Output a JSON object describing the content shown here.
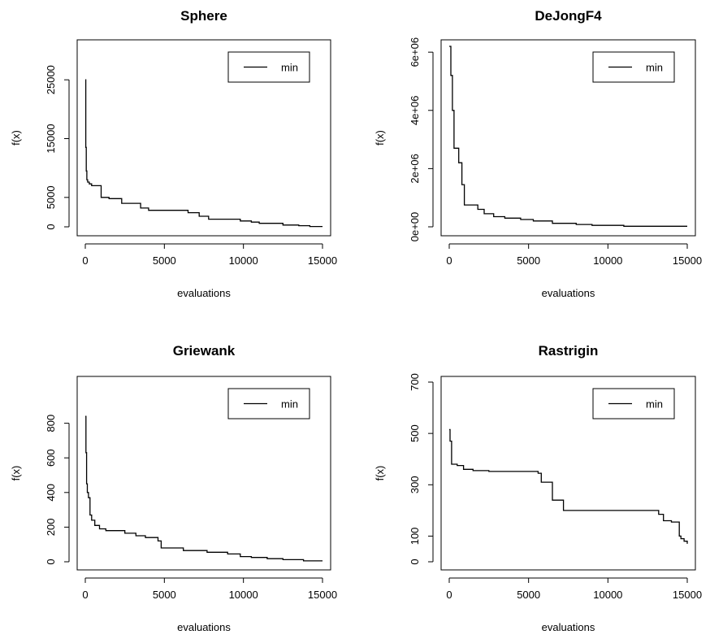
{
  "chart_data": [
    {
      "type": "line",
      "title": "Sphere",
      "xlabel": "evaluations",
      "ylabel": "f(x)",
      "xlim": [
        0,
        15000
      ],
      "ylim": [
        0,
        30000
      ],
      "xticks": [
        0,
        5000,
        10000,
        15000
      ],
      "xtick_labels": [
        "0",
        "5000",
        "10000",
        "15000"
      ],
      "yticks": [
        0,
        5000,
        15000,
        25000
      ],
      "ytick_labels": [
        "0",
        "5000",
        "15000",
        "25000"
      ],
      "legend_placement": "top-right",
      "series": [
        {
          "name": "min",
          "step": true,
          "x": [
            0,
            30,
            60,
            100,
            150,
            250,
            400,
            1000,
            1500,
            2300,
            3500,
            4000,
            6500,
            7200,
            7800,
            9800,
            10500,
            11000,
            12500,
            13500,
            14200,
            15000
          ],
          "y": [
            25000,
            13500,
            9500,
            8000,
            7600,
            7300,
            7000,
            5000,
            4800,
            4000,
            3200,
            2800,
            2400,
            1800,
            1300,
            1000,
            800,
            600,
            300,
            200,
            50,
            50
          ]
        }
      ]
    },
    {
      "type": "line",
      "title": "DeJongF4",
      "xlabel": "evaluations",
      "ylabel": "f(x)",
      "xlim": [
        0,
        15000
      ],
      "ylim": [
        0,
        6200000
      ],
      "xticks": [
        0,
        5000,
        10000,
        15000
      ],
      "xtick_labels": [
        "0",
        "5000",
        "10000",
        "15000"
      ],
      "yticks": [
        0,
        2000000,
        4000000,
        6000000
      ],
      "ytick_labels": [
        "0e+00",
        "2e+06",
        "4e+06",
        "6e+06"
      ],
      "legend_placement": "top-right",
      "series": [
        {
          "name": "min",
          "step": true,
          "x": [
            0,
            100,
            200,
            300,
            600,
            800,
            950,
            1800,
            2200,
            2800,
            3500,
            4500,
            5300,
            6500,
            8000,
            9000,
            11000,
            15000
          ],
          "y": [
            6200000,
            5200000,
            4000000,
            2700000,
            2200000,
            1450000,
            750000,
            600000,
            450000,
            350000,
            300000,
            250000,
            200000,
            120000,
            80000,
            50000,
            20000,
            20000
          ]
        }
      ]
    },
    {
      "type": "line",
      "title": "Griewank",
      "xlabel": "evaluations",
      "ylabel": "f(x)",
      "xlim": [
        0,
        15000
      ],
      "ylim": [
        0,
        1000
      ],
      "xticks": [
        0,
        5000,
        10000,
        15000
      ],
      "xtick_labels": [
        "0",
        "5000",
        "10000",
        "15000"
      ],
      "yticks": [
        0,
        200,
        400,
        600,
        800
      ],
      "ytick_labels": [
        "0",
        "200",
        "400",
        "600",
        "800"
      ],
      "legend_placement": "top-right",
      "series": [
        {
          "name": "min",
          "step": true,
          "x": [
            0,
            40,
            80,
            130,
            200,
            300,
            400,
            600,
            900,
            1300,
            2500,
            3200,
            3800,
            4600,
            4800,
            6200,
            7700,
            9000,
            9800,
            10500,
            11500,
            12500,
            13800,
            15000
          ],
          "y": [
            840,
            630,
            450,
            400,
            370,
            270,
            240,
            210,
            190,
            180,
            165,
            150,
            140,
            120,
            80,
            65,
            55,
            45,
            30,
            25,
            18,
            12,
            5,
            5
          ]
        }
      ]
    },
    {
      "type": "line",
      "title": "Rastrigin",
      "xlabel": "evaluations",
      "ylabel": "f(x)",
      "xlim": [
        0,
        15000
      ],
      "ylim": [
        0,
        700
      ],
      "xticks": [
        0,
        5000,
        10000,
        15000
      ],
      "xtick_labels": [
        "0",
        "5000",
        "10000",
        "15000"
      ],
      "yticks": [
        0,
        100,
        300,
        500,
        700
      ],
      "ytick_labels": [
        "0",
        "100",
        "300",
        "500",
        "700"
      ],
      "legend_placement": "top-right",
      "series": [
        {
          "name": "min",
          "step": true,
          "x": [
            0,
            50,
            150,
            500,
            900,
            1500,
            2500,
            5600,
            5800,
            6500,
            6800,
            7200,
            13200,
            13500,
            14000,
            14500,
            14600,
            14800,
            15000
          ],
          "y": [
            515,
            470,
            380,
            375,
            360,
            355,
            352,
            345,
            310,
            240,
            240,
            200,
            185,
            160,
            155,
            100,
            90,
            80,
            70
          ]
        }
      ]
    }
  ]
}
